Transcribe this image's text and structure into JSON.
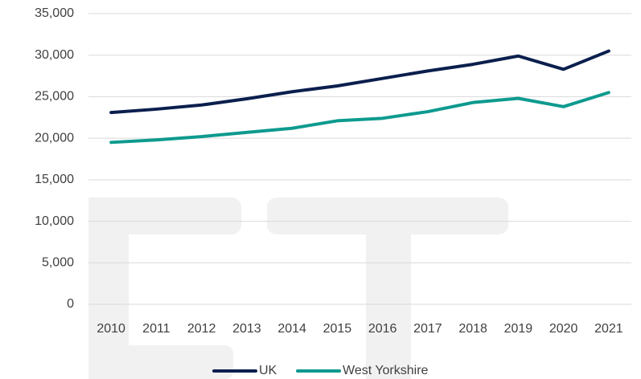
{
  "chart_data": {
    "type": "line",
    "categories": [
      "2010",
      "2011",
      "2012",
      "2013",
      "2014",
      "2015",
      "2016",
      "2017",
      "2018",
      "2019",
      "2020",
      "2021"
    ],
    "series": [
      {
        "name": "UK",
        "color": "#0b1f4e",
        "values": [
          23100,
          23500,
          24000,
          24750,
          25600,
          26300,
          27200,
          28100,
          28900,
          29900,
          28300,
          30500
        ]
      },
      {
        "name": "West Yorkshire",
        "color": "#0e9a8f",
        "values": [
          19500,
          19800,
          20200,
          20700,
          21200,
          22100,
          22400,
          23200,
          24300,
          24800,
          23800,
          25500
        ]
      }
    ],
    "ylim": [
      0,
      35000
    ],
    "yticks": [
      0,
      {
        "value": 5000,
        "label": "5,000"
      },
      {
        "value": 10000,
        "label": "10,000"
      },
      {
        "value": 15000,
        "label": "15,000"
      },
      {
        "value": 20000,
        "label": "20,000"
      },
      {
        "value": 25000,
        "label": "25,000"
      },
      {
        "value": 30000,
        "label": "30,000"
      },
      {
        "value": 35000,
        "label": "35,000"
      }
    ],
    "grid": true,
    "legend": "bottom"
  }
}
